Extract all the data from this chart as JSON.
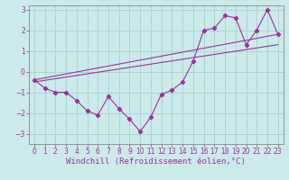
{
  "xlabel": "Windchill (Refroidissement éolien,°C)",
  "bg_color": "#cceaea",
  "grid_color": "#aad4d4",
  "line_color": "#993399",
  "spine_color": "#888888",
  "xlim": [
    -0.5,
    23.5
  ],
  "ylim": [
    -3.5,
    3.2
  ],
  "yticks": [
    -3,
    -2,
    -1,
    0,
    1,
    2,
    3
  ],
  "xticks": [
    0,
    1,
    2,
    3,
    4,
    5,
    6,
    7,
    8,
    9,
    10,
    11,
    12,
    13,
    14,
    15,
    16,
    17,
    18,
    19,
    20,
    21,
    22,
    23
  ],
  "series1_x": [
    0,
    1,
    2,
    3,
    4,
    5,
    6,
    7,
    8,
    9,
    10,
    11,
    12,
    13,
    14,
    15,
    16,
    17,
    18,
    19,
    20,
    21,
    22,
    23
  ],
  "series1_y": [
    -0.4,
    -0.8,
    -1.0,
    -1.0,
    -1.4,
    -1.9,
    -2.1,
    -1.2,
    -1.8,
    -2.3,
    -2.9,
    -2.2,
    -1.1,
    -0.9,
    -0.5,
    0.5,
    2.0,
    2.1,
    2.7,
    2.6,
    1.3,
    2.0,
    3.0,
    1.8
  ],
  "series2_x": [
    0,
    23
  ],
  "series2_y": [
    -0.4,
    1.8
  ],
  "series3_x": [
    0,
    23
  ],
  "series3_y": [
    -0.5,
    1.3
  ],
  "tick_fontsize": 5.5,
  "xlabel_fontsize": 6.5
}
